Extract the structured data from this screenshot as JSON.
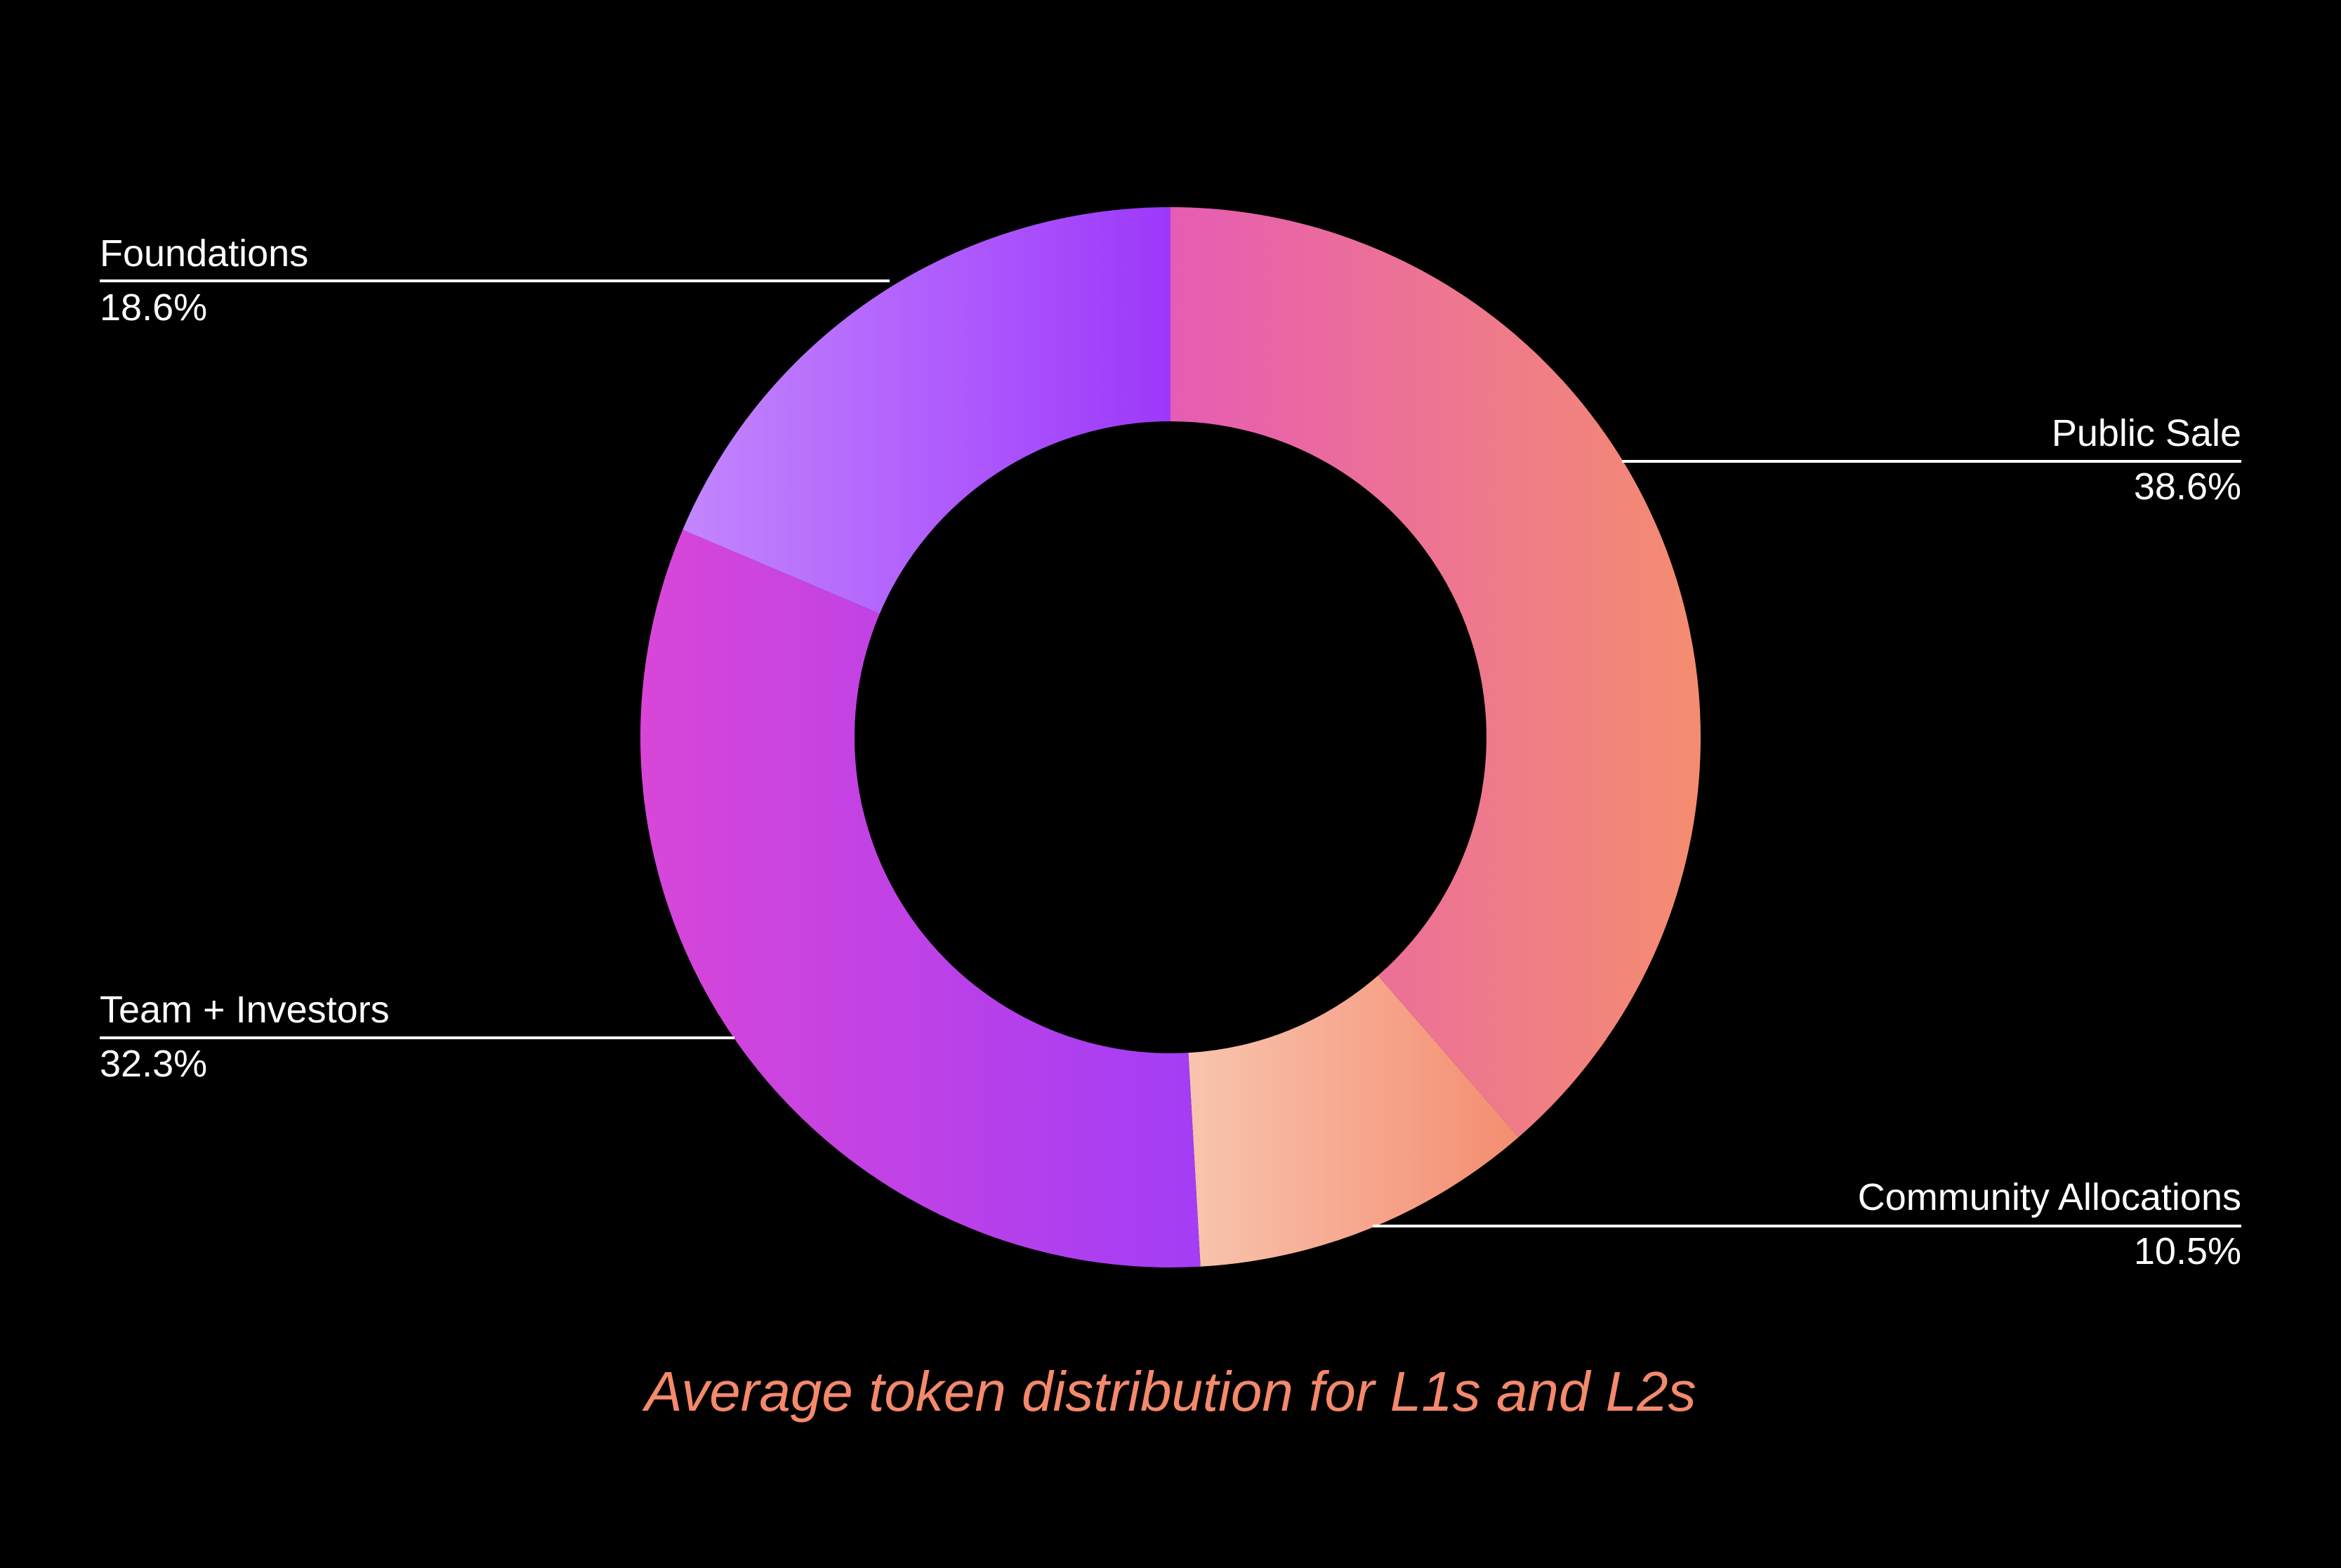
{
  "chart_data": {
    "type": "pie",
    "title": "Average token distribution for L1s and L2s",
    "title_color": "#f4896b",
    "donut": true,
    "categories": [
      "Public Sale",
      "Community Allocations",
      "Team + Investors",
      "Foundations"
    ],
    "values": [
      38.6,
      10.5,
      32.3,
      18.6
    ],
    "value_labels": [
      "38.6%",
      "10.5%",
      "32.3%",
      "18.6%"
    ],
    "colors": [
      [
        "#e65cb3",
        "#f48d70"
      ],
      [
        "#f8c4ae",
        "#f48d70"
      ],
      [
        "#d846d8",
        "#a33df5"
      ],
      [
        "#c386fd",
        "#9d38fb"
      ]
    ],
    "start_angle_deg": 0,
    "direction": "clockwise"
  }
}
